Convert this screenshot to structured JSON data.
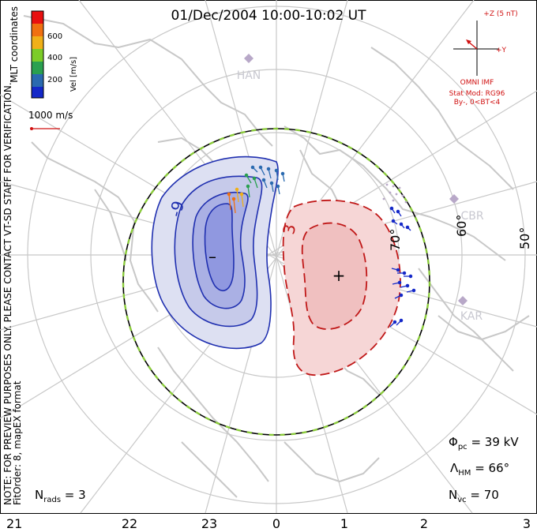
{
  "title": "01/Dec/2004 10:00-10:02 UT",
  "colorbar": {
    "label": "Vel [m/s]",
    "ticks": [
      "600",
      "400",
      "200"
    ],
    "colors": [
      "#e81010",
      "#f07010",
      "#f0b018",
      "#7ccc28",
      "#2aa050",
      "#2a6ab0",
      "#1428c8"
    ]
  },
  "mlt_label": "MLT coordinates",
  "reference_vector": "1000 m/s",
  "side_note": "NOTE: FOR PREVIEW PURPOSES ONLY. PLEASE CONTACT VT-SD STAFF FOR VERIFICATION.",
  "fit_note": "FitOrder: 8, mapEX format",
  "imf": {
    "axis_z": "+Z (5 nT)",
    "axis_y": "+Y",
    "source": "OMNI IMF",
    "model_line1": "Stat Mod: RG96",
    "model_line2": "By-, 0<BT<4"
  },
  "stations": [
    "HAN",
    "CBR",
    "KAR"
  ],
  "lat_labels": [
    "70°",
    "60°",
    "50°"
  ],
  "contours": {
    "neg_label": "-9",
    "pos_label": "3",
    "neg_sign": "–",
    "pos_sign": "+"
  },
  "stats": {
    "phi_pc": "39 kV",
    "lambda_hm": "66°",
    "n_vc": "70",
    "n_rads": "3"
  },
  "mlt_axis": [
    "21",
    "22",
    "23",
    "0",
    "1",
    "2",
    "3"
  ],
  "palette": {
    "negative": "#2030b0",
    "positive": "#c01818",
    "coast": "#c8c8c8",
    "boundary": "#8acb3a"
  }
}
